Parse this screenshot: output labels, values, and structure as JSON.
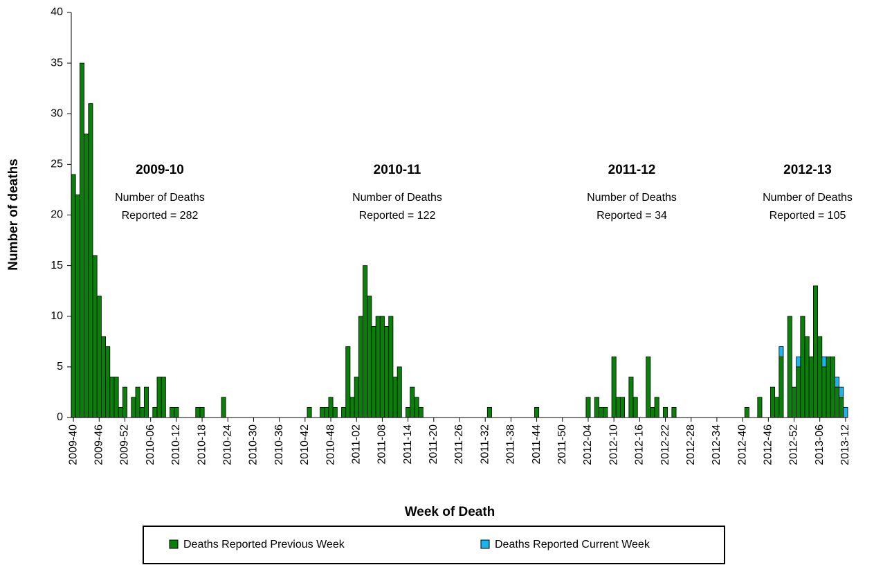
{
  "chart_data": {
    "type": "stacked-bar",
    "x_label": "Week of Death",
    "y_label": "Number of deaths",
    "ylim": [
      0,
      40
    ],
    "yticks": [
      0,
      5,
      10,
      15,
      20,
      25,
      30,
      35,
      40
    ],
    "grid": false,
    "legend": "bottom",
    "annotations": [
      {
        "title": "2009-10",
        "lines": [
          "Number of Deaths",
          "Reported = 282"
        ]
      },
      {
        "title": "2010-11",
        "lines": [
          "Number of Deaths",
          "Reported = 122"
        ]
      },
      {
        "title": "2011-12",
        "lines": [
          "Number of Deaths",
          "Reported = 34"
        ]
      },
      {
        "title": "2012-13",
        "lines": [
          "Number of Deaths",
          "Reported = 105"
        ]
      }
    ],
    "categories": [
      "2009-40",
      null,
      null,
      null,
      null,
      null,
      "2009-46",
      null,
      null,
      null,
      null,
      null,
      "2009-52",
      null,
      null,
      null,
      null,
      null,
      "2010-06",
      null,
      null,
      null,
      null,
      null,
      "2010-12",
      null,
      null,
      null,
      null,
      null,
      "2010-18",
      null,
      null,
      null,
      null,
      null,
      "2010-24",
      null,
      null,
      null,
      null,
      null,
      "2010-30",
      null,
      null,
      null,
      null,
      null,
      "2010-36",
      null,
      null,
      null,
      null,
      null,
      "2010-42",
      null,
      null,
      null,
      null,
      null,
      "2010-48",
      null,
      null,
      null,
      null,
      null,
      "2011-02",
      null,
      null,
      null,
      null,
      null,
      "2011-08",
      null,
      null,
      null,
      null,
      null,
      "2011-14",
      null,
      null,
      null,
      null,
      null,
      "2011-20",
      null,
      null,
      null,
      null,
      null,
      "2011-26",
      null,
      null,
      null,
      null,
      null,
      "2011-32",
      null,
      null,
      null,
      null,
      null,
      "2011-38",
      null,
      null,
      null,
      null,
      null,
      "2011-44",
      null,
      null,
      null,
      null,
      null,
      "2011-50",
      null,
      null,
      null,
      null,
      null,
      "2012-04",
      null,
      null,
      null,
      null,
      null,
      "2012-10",
      null,
      null,
      null,
      null,
      null,
      "2012-16",
      null,
      null,
      null,
      null,
      null,
      "2012-22",
      null,
      null,
      null,
      null,
      null,
      "2012-28",
      null,
      null,
      null,
      null,
      null,
      "2012-34",
      null,
      null,
      null,
      null,
      null,
      "2012-40",
      null,
      null,
      null,
      null,
      null,
      "2012-46",
      null,
      null,
      null,
      null,
      null,
      "2012-52",
      null,
      null,
      null,
      null,
      null,
      "2013-06",
      null,
      null,
      null,
      null,
      null,
      "2013-12"
    ],
    "series": [
      {
        "name": "Deaths Reported Previous Week",
        "color": "#0a7f0a",
        "values": [
          24,
          22,
          35,
          28,
          31,
          16,
          12,
          8,
          7,
          4,
          4,
          1,
          3,
          0,
          2,
          3,
          1,
          3,
          0,
          1,
          4,
          4,
          0,
          1,
          1,
          0,
          0,
          0,
          0,
          1,
          1,
          0,
          0,
          0,
          0,
          2,
          0,
          0,
          0,
          0,
          0,
          0,
          0,
          0,
          0,
          0,
          0,
          0,
          0,
          0,
          0,
          0,
          0,
          0,
          0,
          1,
          0,
          0,
          1,
          1,
          2,
          1,
          0,
          1,
          7,
          2,
          4,
          10,
          15,
          12,
          9,
          10,
          10,
          9,
          10,
          4,
          5,
          0,
          1,
          3,
          2,
          1,
          0,
          0,
          0,
          0,
          0,
          0,
          0,
          0,
          0,
          0,
          0,
          0,
          0,
          0,
          0,
          1,
          0,
          0,
          0,
          0,
          0,
          0,
          0,
          0,
          0,
          0,
          1,
          0,
          0,
          0,
          0,
          0,
          0,
          0,
          0,
          0,
          0,
          0,
          2,
          0,
          2,
          1,
          1,
          0,
          6,
          2,
          2,
          0,
          4,
          2,
          0,
          0,
          6,
          1,
          2,
          0,
          1,
          0,
          1,
          0,
          0,
          0,
          0,
          0,
          0,
          0,
          0,
          0,
          0,
          0,
          0,
          0,
          0,
          0,
          0,
          1,
          0,
          0,
          2,
          0,
          0,
          3,
          2,
          6,
          0,
          10,
          3,
          5,
          10,
          8,
          6,
          13,
          8,
          5,
          6,
          6,
          3,
          2,
          0
        ]
      },
      {
        "name": "Deaths Reported Current Week",
        "color": "#1cb4ec",
        "values": [
          0,
          0,
          0,
          0,
          0,
          0,
          0,
          0,
          0,
          0,
          0,
          0,
          0,
          0,
          0,
          0,
          0,
          0,
          0,
          0,
          0,
          0,
          0,
          0,
          0,
          0,
          0,
          0,
          0,
          0,
          0,
          0,
          0,
          0,
          0,
          0,
          0,
          0,
          0,
          0,
          0,
          0,
          0,
          0,
          0,
          0,
          0,
          0,
          0,
          0,
          0,
          0,
          0,
          0,
          0,
          0,
          0,
          0,
          0,
          0,
          0,
          0,
          0,
          0,
          0,
          0,
          0,
          0,
          0,
          0,
          0,
          0,
          0,
          0,
          0,
          0,
          0,
          0,
          0,
          0,
          0,
          0,
          0,
          0,
          0,
          0,
          0,
          0,
          0,
          0,
          0,
          0,
          0,
          0,
          0,
          0,
          0,
          0,
          0,
          0,
          0,
          0,
          0,
          0,
          0,
          0,
          0,
          0,
          0,
          0,
          0,
          0,
          0,
          0,
          0,
          0,
          0,
          0,
          0,
          0,
          0,
          0,
          0,
          0,
          0,
          0,
          0,
          0,
          0,
          0,
          0,
          0,
          0,
          0,
          0,
          0,
          0,
          0,
          0,
          0,
          0,
          0,
          0,
          0,
          0,
          0,
          0,
          0,
          0,
          0,
          0,
          0,
          0,
          0,
          0,
          0,
          0,
          0,
          0,
          0,
          0,
          0,
          0,
          0,
          0,
          1,
          0,
          0,
          0,
          1,
          0,
          0,
          0,
          0,
          0,
          1,
          0,
          0,
          1,
          1,
          1
        ]
      }
    ]
  }
}
